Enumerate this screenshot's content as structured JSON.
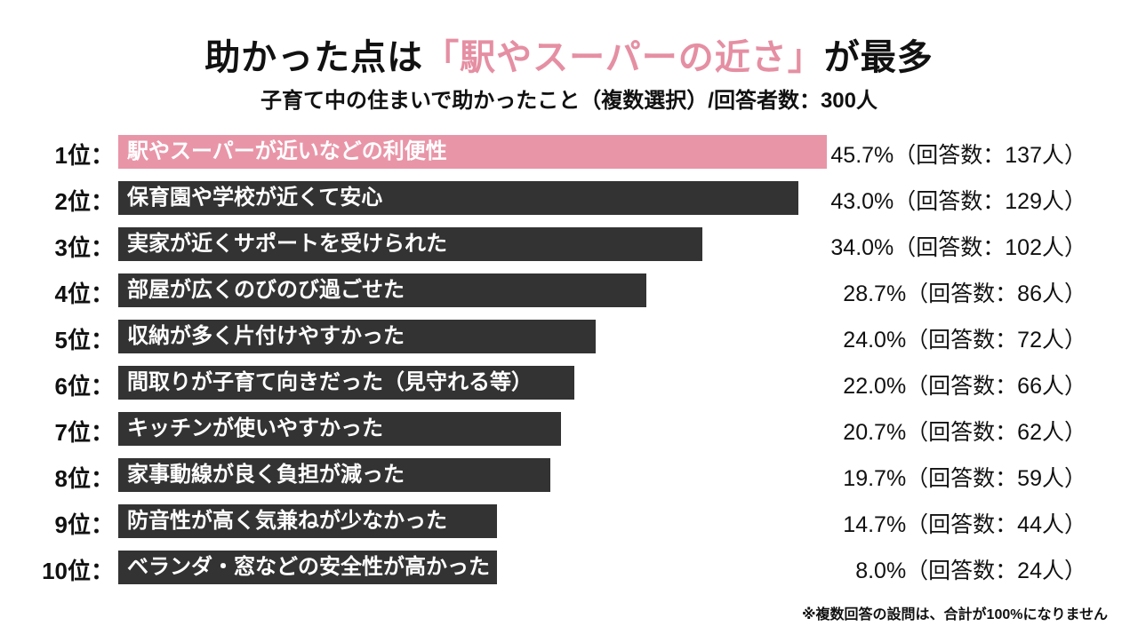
{
  "title": {
    "prefix": "助かった点は",
    "highlight": "「駅やスーパーの近さ」",
    "suffix": "が最多"
  },
  "subtitle": "子育て中の住まいで助かったこと（複数選択）/回答者数：300人",
  "footnote": "※複数回答の設問は、合計が100%になりません",
  "colors": {
    "highlight": "#e995a8",
    "bar": "#333333",
    "title_accent": "#e58fa3"
  },
  "chart_data": {
    "type": "bar",
    "orientation": "horizontal",
    "title": "助かった点は「駅やスーパーの近さ」が最多",
    "subtitle": "子育て中の住まいで助かったこと（複数選択）/回答者数：300人",
    "respondents": 300,
    "items": [
      {
        "rank": "1位：",
        "label": "駅やスーパーが近いなどの利便性",
        "value": 45.7,
        "count": 137,
        "value_text": "45.7%（回答数：137人）"
      },
      {
        "rank": "2位：",
        "label": "保育園や学校が近くて安心",
        "value": 43.0,
        "count": 129,
        "value_text": "43.0%（回答数：129人）"
      },
      {
        "rank": "3位：",
        "label": "実家が近くサポートを受けられた",
        "value": 34.0,
        "count": 102,
        "value_text": "34.0%（回答数：102人）"
      },
      {
        "rank": "4位：",
        "label": "部屋が広くのびのび過ごせた",
        "value": 28.7,
        "count": 86,
        "value_text": "28.7%（回答数：86人）"
      },
      {
        "rank": "5位：",
        "label": "収納が多く片付けやすかった",
        "value": 24.0,
        "count": 72,
        "value_text": "24.0%（回答数：72人）"
      },
      {
        "rank": "6位：",
        "label": "間取りが子育て向きだった（見守れる等）",
        "value": 22.0,
        "count": 66,
        "value_text": "22.0%（回答数：66人）"
      },
      {
        "rank": "7位：",
        "label": "キッチンが使いやすかった",
        "value": 20.7,
        "count": 62,
        "value_text": "20.7%（回答数：62人）"
      },
      {
        "rank": "8位：",
        "label": "家事動線が良く負担が減った",
        "value": 19.7,
        "count": 59,
        "value_text": "19.7%（回答数：59人）"
      },
      {
        "rank": "9位：",
        "label": "防音性が高く気兼ねが少なかった",
        "value": 14.7,
        "count": 44,
        "value_text": "14.7%（回答数：44人）"
      },
      {
        "rank": "10位：",
        "label": "ベランダ・窓などの安全性が高かった",
        "value": 8.0,
        "count": 24,
        "value_text": "8.0%（回答数：24人）"
      }
    ]
  }
}
